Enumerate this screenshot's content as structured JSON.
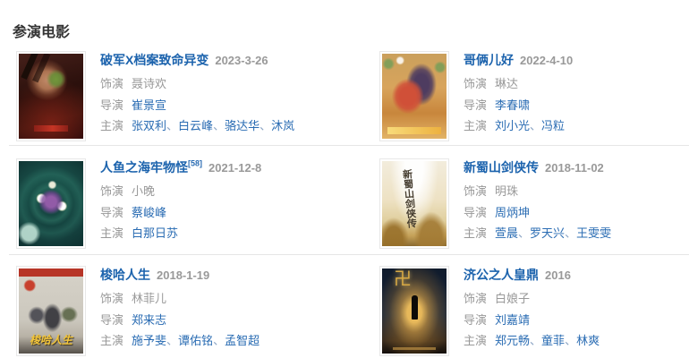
{
  "section": {
    "title": "参演电影"
  },
  "labels": {
    "role": "饰演",
    "director": "导演",
    "starring": "主演",
    "separator": "、"
  },
  "colors": {
    "link_blue": "#2a6cb3",
    "title_blue": "#1c63ad",
    "muted_gray": "#999999",
    "divider": "#e6e6e6"
  },
  "movies": [
    {
      "title": "破军X档案致命异变",
      "cite": "",
      "date": "2023-3-26",
      "role": "聂诗欢",
      "director": "崔景宣",
      "starring": [
        "张双利",
        "白云峰",
        "骆达华",
        "沐岚"
      ],
      "poster_theme": "infected-soldier-dark-red",
      "poster_text": ""
    },
    {
      "title": "哥俩儿好",
      "cite": "",
      "date": "2022-4-10",
      "role": "琳达",
      "director": "李春啸",
      "starring": [
        "刘小光",
        "冯粒"
      ],
      "poster_theme": "golden-comedy-duo",
      "poster_text": ""
    },
    {
      "title": "人鱼之海牢物怪",
      "cite": "[58]",
      "date": "2021-12-8",
      "role": "小晚",
      "director": "蔡峻峰",
      "starring": [
        "白那日苏"
      ],
      "poster_theme": "teal-mermaid-swirl",
      "poster_text": ""
    },
    {
      "title": "新蜀山剑侠传",
      "cite": "",
      "date": "2018-11-02",
      "role": "明珠",
      "director": "周炳坤",
      "starring": [
        "萱晨",
        "罗天兴",
        "王雯雯"
      ],
      "poster_theme": "pale-wuxia-calligraphy",
      "poster_text": "新蜀山剑侠传"
    },
    {
      "title": "梭哈人生",
      "cite": "",
      "date": "2018-1-19",
      "role": "林菲儿",
      "director": "郑来志",
      "starring": [
        "施予斐",
        "谭佑铭",
        "孟智超"
      ],
      "poster_theme": "street-comedy-gray",
      "poster_text": "梭哈人生"
    },
    {
      "title": "济公之人皇鼎",
      "cite": "",
      "date": "2016",
      "role": "白娘子",
      "director": "刘嘉靖",
      "starring": [
        "郑元畅",
        "童菲",
        "林爽"
      ],
      "poster_theme": "dark-golden-glow",
      "poster_text": "卍"
    }
  ]
}
